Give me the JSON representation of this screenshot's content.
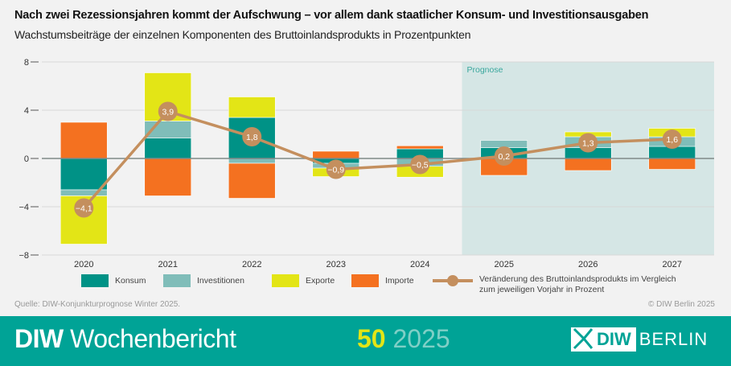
{
  "chart_data": {
    "type": "bar",
    "stacked": true,
    "title": "Nach zwei Rezessionsjahren kommt der Aufschwung – vor allem dank staatlicher Konsum- und Investitionsausgaben",
    "subtitle": "Wachstumsbeiträge der einzelnen Komponenten des Bruttoinlandsprodukts in Prozentpunkten",
    "categories": [
      "2020",
      "2021",
      "2022",
      "2023",
      "2024",
      "2025",
      "2026",
      "2027"
    ],
    "ylim": [
      -8,
      8
    ],
    "yticks": [
      -8,
      -4,
      0,
      4,
      8
    ],
    "ytick_labels": [
      "−8",
      "−4",
      "0",
      "4",
      "8"
    ],
    "grid": true,
    "forecast_label": "Prognose",
    "forecast_from": "2025",
    "series": [
      {
        "name": "Konsum",
        "color": "#009286",
        "values": [
          -2.6,
          1.7,
          3.4,
          -0.4,
          0.8,
          0.9,
          0.9,
          1.0
        ]
      },
      {
        "name": "Investitionen",
        "color": "#80bdb9",
        "values": [
          -0.5,
          1.4,
          -0.4,
          -0.4,
          -0.65,
          0.6,
          0.9,
          0.8
        ]
      },
      {
        "name": "Exporte",
        "color": "#e3e516",
        "values": [
          -4.0,
          4.0,
          1.7,
          -0.7,
          -0.9,
          0.0,
          0.4,
          0.7
        ]
      },
      {
        "name": "Importe",
        "color": "#f47120",
        "values": [
          3.0,
          -3.1,
          -2.9,
          0.6,
          0.25,
          -1.4,
          -1.0,
          -0.9
        ]
      }
    ],
    "line": {
      "name": "Veränderung des Bruttoinlandsprodukts im Vergleich zum jeweiligen Vorjahr in Prozent",
      "name_line1": "Veränderung des Bruttoinlandsprodukts im Vergleich",
      "name_line2": "zum jeweiligen Vorjahr in Prozent",
      "color": "#c48f5e",
      "values": [
        -4.1,
        3.9,
        1.8,
        -0.9,
        -0.5,
        0.2,
        1.3,
        1.6
      ],
      "labels": [
        "−4,1",
        "3,9",
        "1,8",
        "−0,9",
        "−0,5",
        "0,2",
        "1,3",
        "1,6"
      ]
    },
    "legend_placement": "bottom"
  },
  "source": "Quelle: DIW-Konjunkturprognose Winter 2025.",
  "copyright": "© DIW Berlin 2025",
  "footer": {
    "brand_bold": "DIW",
    "brand_rest": "Wochenbericht",
    "issue_number": "50",
    "issue_year": "2025",
    "logo_box": "DIW",
    "logo_text": "BERLIN",
    "band_color": "#00a396"
  }
}
